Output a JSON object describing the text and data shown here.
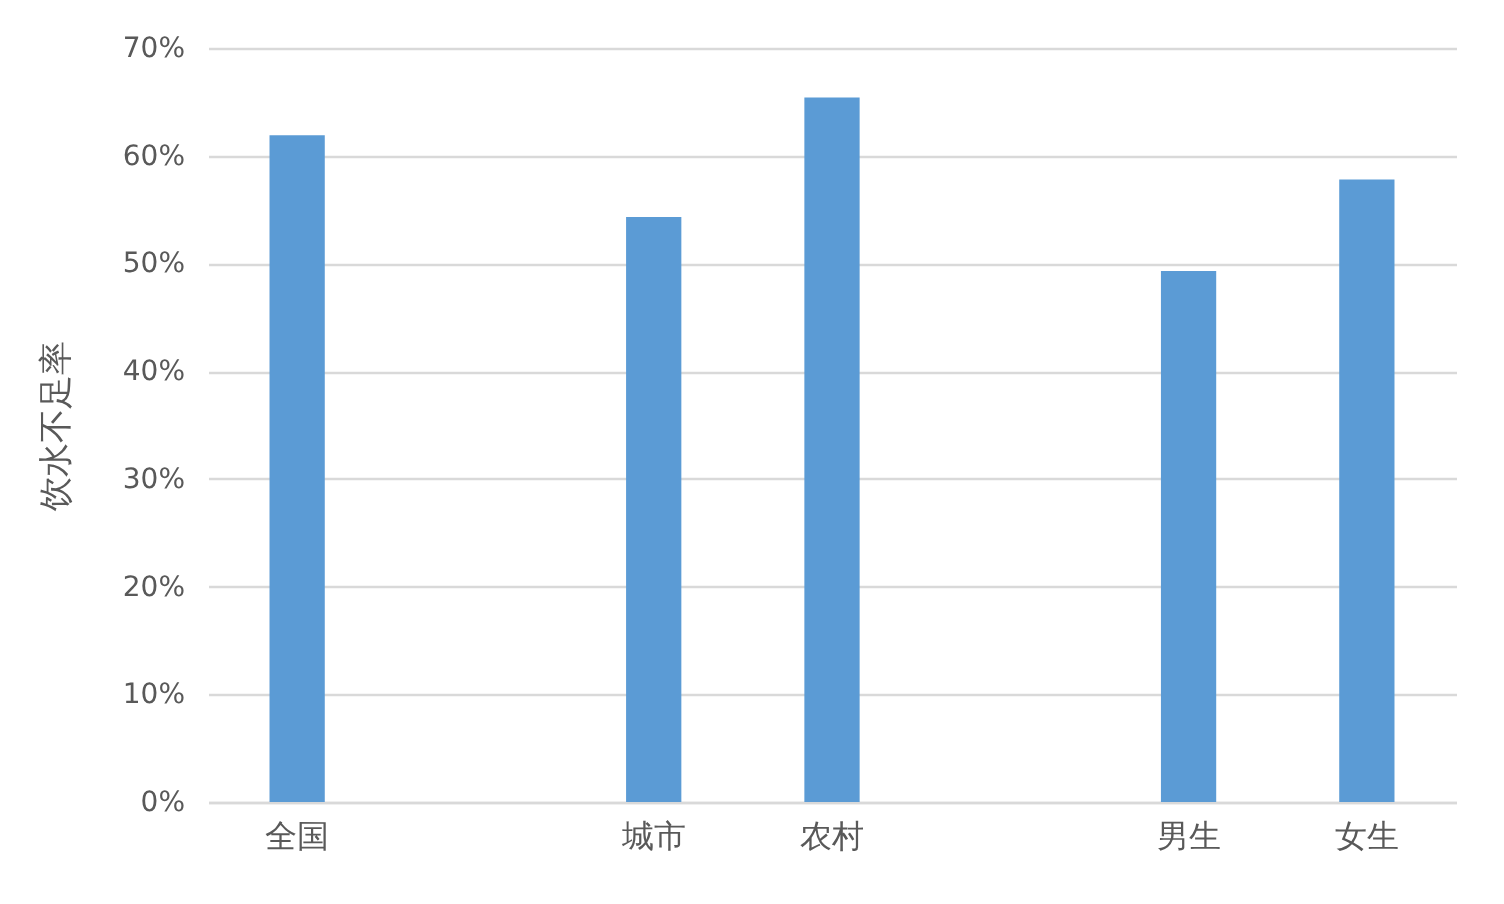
{
  "chart_data": {
    "type": "bar",
    "ylabel": "饮水不足率",
    "categories": [
      "全国",
      null,
      "城市",
      "农村",
      null,
      "男生",
      "女生"
    ],
    "values": [
      61.9,
      null,
      54.3,
      65.4,
      null,
      49.3,
      57.8
    ],
    "color": "#5b9bd5",
    "ylim": [
      0,
      70
    ],
    "yticks": [
      {
        "value": 0,
        "label": "0%"
      },
      {
        "value": 10,
        "label": "10%"
      },
      {
        "value": 20,
        "label": "20%"
      },
      {
        "value": 30,
        "label": "30%"
      },
      {
        "value": 40,
        "label": "40%"
      },
      {
        "value": 50,
        "label": "50%"
      },
      {
        "value": 60,
        "label": "60%"
      },
      {
        "value": 70,
        "label": "70%"
      }
    ],
    "grid": "y"
  }
}
